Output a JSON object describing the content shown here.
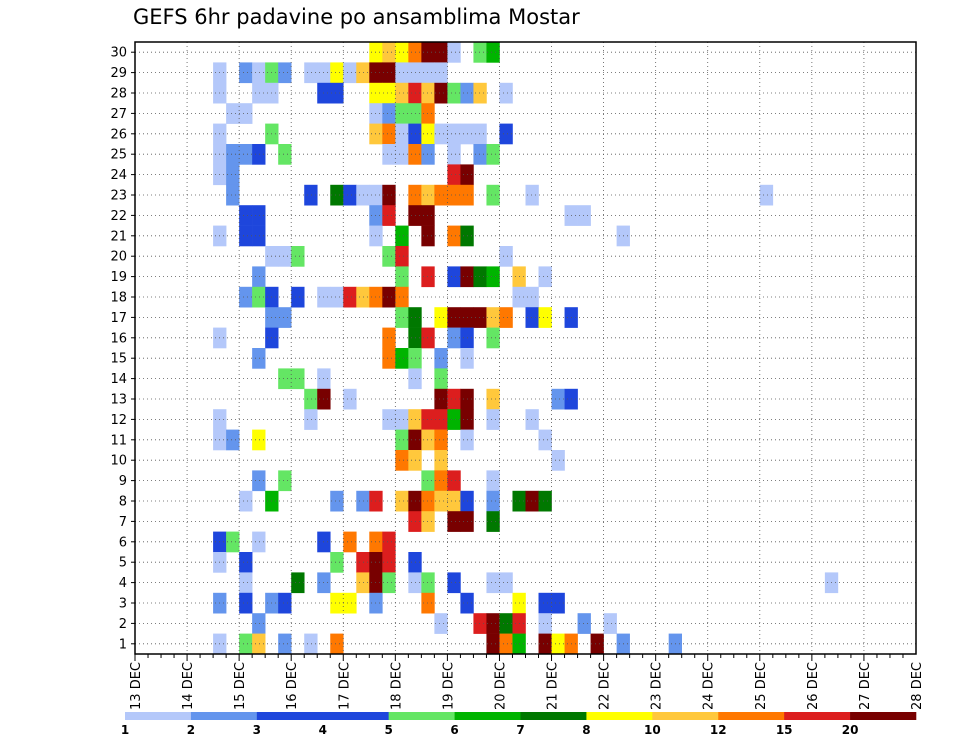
{
  "chart_data": {
    "type": "heatmap",
    "title": "GEFS 6hr padavine po ansamblima Mostar",
    "xlabel": "",
    "ylabel": "",
    "x_ticks": [
      "13 DEC",
      "14 DEC",
      "15 DEC",
      "16 DEC",
      "17 DEC",
      "18 DEC",
      "19 DEC",
      "20 DEC",
      "21 DEC",
      "22 DEC",
      "23 DEC",
      "24 DEC",
      "25 DEC",
      "26 DEC",
      "27 DEC",
      "28 DEC"
    ],
    "x_unit": "6-hour step starting 13 DEC 00Z (4 steps per day)",
    "y_ticks": [
      1,
      2,
      3,
      4,
      5,
      6,
      7,
      8,
      9,
      10,
      11,
      12,
      13,
      14,
      15,
      16,
      17,
      18,
      19,
      20,
      21,
      22,
      23,
      24,
      25,
      26,
      27,
      28,
      29,
      30
    ],
    "ylabel_meaning": "ensemble member",
    "grid": "dotted",
    "colorbar": {
      "position": "bottom",
      "ticks": [
        "1",
        "2",
        "3",
        "4",
        "5",
        "6",
        "7",
        "8",
        "10",
        "12",
        "15",
        "20"
      ],
      "class_colors": [
        "#b4c8fa",
        "#6495ed",
        "#1e46dc",
        "#1e46dc",
        "#64e664",
        "#00b400",
        "#007800",
        "#ffff00",
        "#ffc83c",
        "#ff7800",
        "#dc1e1e",
        "#780000"
      ]
    },
    "class_legend": {
      "1": ">=1",
      "2": ">=2",
      "3": ">=3",
      "4": ">=4",
      "5": ">=5",
      "6": ">=6",
      "7": ">=7",
      "8": ">=8",
      "9": ">=10",
      "a": ">=12",
      "b": ">=15",
      "c": ">=20"
    },
    "rows": [
      {
        "member": 30,
        "cells": "                  898acc1 56                                                   2  1           72  "
      },
      {
        "member": 29,
        "cells": "      1 2152 11819cc1111                                                               2          "
      },
      {
        "member": 28,
        "cells": "      1  11   33  889b9c529 1                                                                 "
      },
      {
        "member": 27,
        "cells": "       11         1255a                                                                       "
      },
      {
        "member": 26,
        "cells": "      1   5       9a1381111 3                                                   3c95c  1 88c2a"
      },
      {
        "member": 25,
        "cells": "      1223 5       11a2 1 25                                      5 2                     1 651 3"
      },
      {
        "member": 24,
        "cells": "      12                bc                                                                    "
      },
      {
        "member": 23,
        "cells": "       2     3 7311c a9aaa 5  1                 1                                       16 2"
      },
      {
        "member": 22,
        "cells": "        33        2b cc          11                                                           "
      },
      {
        "member": 21,
        "cells": "      1 33        1 6 c a7           1                                 1 a1 3       1565 81  "
      },
      {
        "member": 20,
        "cells": "          115      5b       1                                                  3556 3532 3 33"
      },
      {
        "member": 19,
        "cells": "         2          5 b 4c76 9 1                                                               "
      },
      {
        "member": 18,
        "cells": "        253 3 11b9aca        11                                        1 5 1                "
      },
      {
        "member": 17,
        "cells": "          22        57 8ccc9a 38 3                                                            "
      },
      {
        "member": 16,
        "cells": "      1   3        a 7b 23 5                                                   2   5ba        "
      },
      {
        "member": 15,
        "cells": "         2         a65 2 1                                                            1      "
      },
      {
        "member": 14,
        "cells": "           55 1      1 5                                                                    "
      },
      {
        "member": 13,
        "cells": "             5c 1      cbc 9    23                                                  3 c8     "
      },
      {
        "member": 12,
        "cells": "      1      1     119bb6c 1  1                                            5b9 2 1            "
      },
      {
        "member": 11,
        "cells": "      12 8          5c9a 1     1                                           2                 "
      },
      {
        "member": 10,
        "cells": "                    a9 9        1                                                             "
      },
      {
        "member": 9,
        "cells": "         2 5          5ab  1                                             8                    "
      },
      {
        "member": 8,
        "cells": "        1 6    2 2b 9ca993 2 7c7                                                 1 cc 1    "
      },
      {
        "member": 7,
        "cells": "                     b9 cc 7                                                                 "
      },
      {
        "member": 6,
        "cells": "      35 1    3 a ab                                            5                            "
      },
      {
        "member": 5,
        "cells": "      1 3      5 bcb 3                                                      3                 "
      },
      {
        "member": 4,
        "cells": "        1   7 2  9c5 15 3  11                        1                                       "
      },
      {
        "member": 3,
        "cells": "      2 3 23   88 2   a  3   8 33                               3 1                             "
      },
      {
        "member": 2,
        "cells": "         2             1  bc7b 1  2 1                                                        "
      },
      {
        "member": 1,
        "cells": "      1 59 2 1 a           ca6 c8a c 2   2                         2     3 1                   "
      }
    ]
  }
}
